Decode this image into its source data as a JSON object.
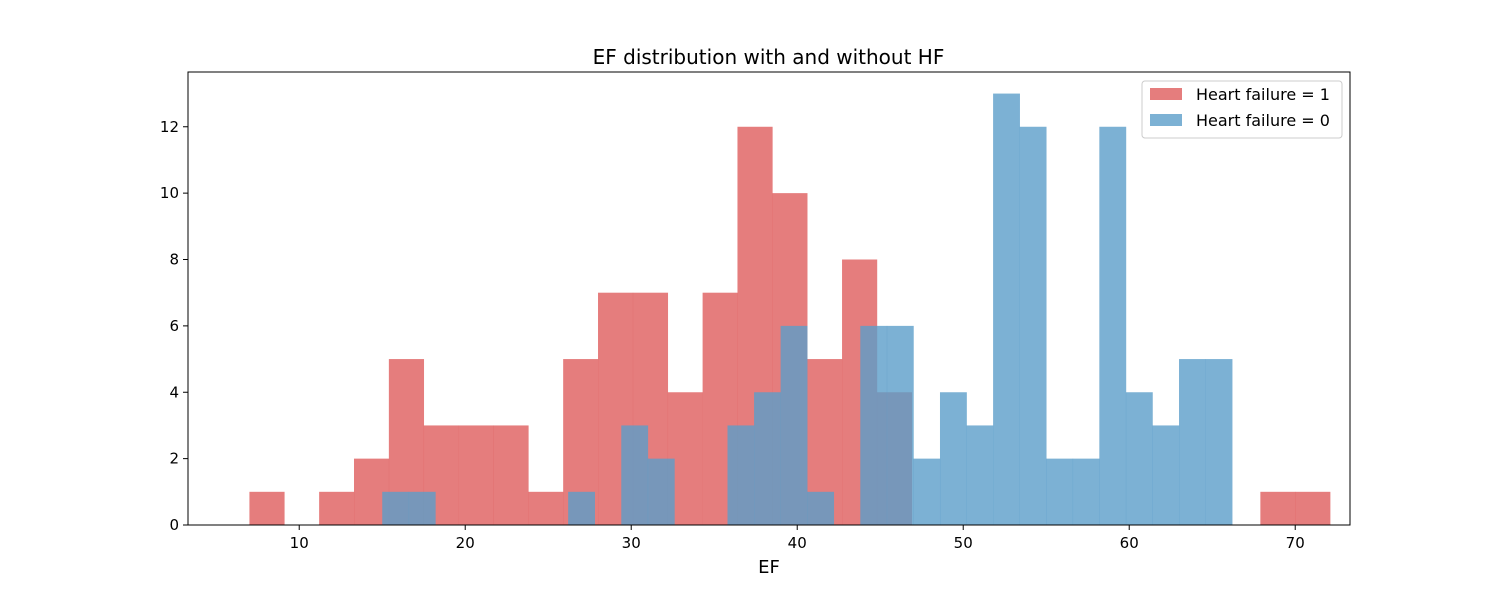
{
  "chart_data": {
    "type": "bar",
    "subtype": "overlaid-histogram",
    "title": "EF distribution with and without HF",
    "xlabel": "EF",
    "ylabel": "",
    "xlim": [
      3.3,
      73.3
    ],
    "ylim": [
      0,
      13.65
    ],
    "xticks": [
      10,
      20,
      30,
      40,
      50,
      60,
      70
    ],
    "yticks": [
      0,
      2,
      4,
      6,
      8,
      10,
      12
    ],
    "grid": false,
    "legend_position": "top-right",
    "series": [
      {
        "name": "Heart failure = 1",
        "color": "#e06666",
        "opacity": 0.85,
        "bin_start": 7,
        "bin_width": 2.1,
        "values": [
          1,
          0,
          1,
          2,
          5,
          3,
          3,
          3,
          1,
          5,
          7,
          7,
          4,
          7,
          12,
          10,
          5,
          8,
          4,
          0,
          0,
          0,
          0,
          0,
          0,
          0,
          0,
          0,
          0,
          1,
          1
        ]
      },
      {
        "name": "Heart failure = 0",
        "color": "#5b9ec9",
        "opacity": 0.8,
        "bin_start": 15,
        "bin_width": 1.6,
        "values": [
          1,
          1,
          0,
          0,
          0,
          0,
          0,
          1,
          0,
          3,
          2,
          0,
          0,
          3,
          4,
          6,
          1,
          0,
          6,
          6,
          2,
          4,
          3,
          13,
          12,
          2,
          2,
          12,
          4,
          3,
          5,
          5
        ]
      }
    ]
  }
}
